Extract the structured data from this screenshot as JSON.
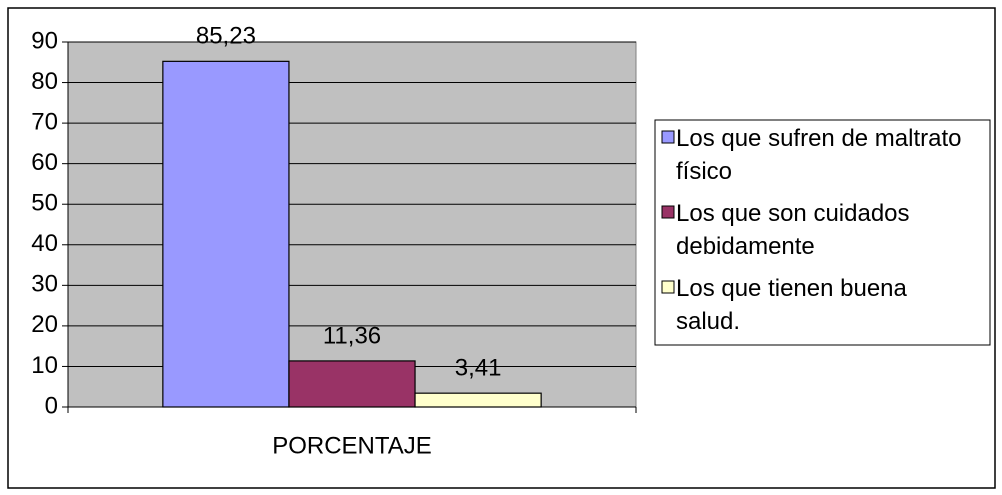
{
  "chart_data": {
    "type": "bar",
    "categories": [
      "PORCENTAJE"
    ],
    "series": [
      {
        "name": "Los que sufren de maltrato físico",
        "color": "#9999ff",
        "values": [
          85.23
        ],
        "value_labels": [
          "85,23"
        ]
      },
      {
        "name": "Los que son cuidados debidamente",
        "color": "#993366",
        "values": [
          11.36
        ],
        "value_labels": [
          "11,36"
        ]
      },
      {
        "name": "Los que tienen buena salud.",
        "color": "#ffffcc",
        "values": [
          3.41
        ],
        "value_labels": [
          "3,41"
        ]
      }
    ],
    "ylim": [
      0,
      90
    ],
    "yticks": [
      0,
      10,
      20,
      30,
      40,
      50,
      60,
      70,
      80,
      90
    ],
    "grid": true,
    "legend": "right"
  }
}
